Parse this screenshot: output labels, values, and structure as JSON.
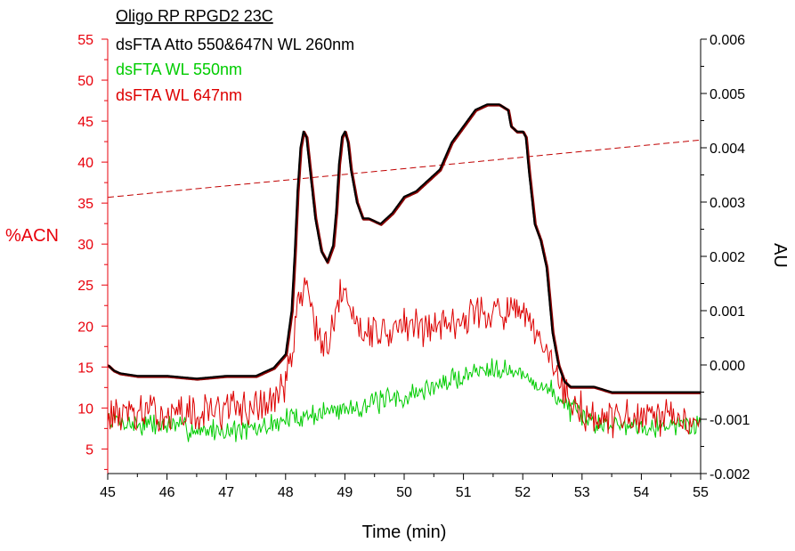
{
  "chart_data": {
    "type": "line",
    "title": "Oligo RP RPGD2 23C",
    "xlabel": "Time (min)",
    "ylabel_left": "%ACN",
    "ylabel_right": "AU",
    "xlim": [
      45,
      55
    ],
    "ylim_left": [
      2,
      55
    ],
    "ylim_right": [
      -0.002,
      0.006
    ],
    "x_ticks": [
      "45",
      "46",
      "47",
      "48",
      "49",
      "50",
      "51",
      "52",
      "53",
      "54",
      "55"
    ],
    "y_left_ticks": [
      "5",
      "10",
      "15",
      "20",
      "25",
      "30",
      "35",
      "40",
      "45",
      "50",
      "55"
    ],
    "y_right_ticks": [
      "-0.002",
      "-0.001",
      "0.000",
      "0.001",
      "0.002",
      "0.003",
      "0.004",
      "0.005",
      "0.006"
    ],
    "grid": false,
    "legend_position": "top-left",
    "colors": {
      "left_axis": "#e8000b",
      "gradient": "#c00000",
      "wl260": "#000000",
      "wl260_shadow": "#8b0000",
      "wl550": "#00cc00",
      "wl647": "#dd0000"
    },
    "series": [
      {
        "name": "dsFTA Atto 550&647N WL 260nm",
        "axis": "right",
        "x": [
          45.0,
          45.1,
          45.2,
          45.5,
          46.0,
          46.5,
          47.0,
          47.5,
          47.8,
          48.0,
          48.1,
          48.15,
          48.2,
          48.25,
          48.3,
          48.35,
          48.4,
          48.5,
          48.6,
          48.7,
          48.8,
          48.85,
          48.9,
          48.95,
          49.0,
          49.05,
          49.1,
          49.2,
          49.3,
          49.4,
          49.6,
          49.7,
          49.8,
          50.0,
          50.2,
          50.4,
          50.6,
          50.8,
          51.0,
          51.2,
          51.4,
          51.6,
          51.75,
          51.8,
          51.9,
          52.0,
          52.05,
          52.1,
          52.2,
          52.3,
          52.4,
          52.5,
          52.6,
          52.7,
          52.8,
          53.0,
          53.2,
          53.5,
          54.0,
          54.5,
          55.0
        ],
        "y": [
          0.0,
          -0.0001,
          -0.00015,
          -0.0002,
          -0.0002,
          -0.00025,
          -0.0002,
          -0.0002,
          -5e-05,
          0.0002,
          0.001,
          0.002,
          0.0032,
          0.004,
          0.0043,
          0.0042,
          0.0037,
          0.0027,
          0.0021,
          0.0019,
          0.0022,
          0.0028,
          0.0037,
          0.0042,
          0.0043,
          0.0041,
          0.0036,
          0.003,
          0.0027,
          0.0027,
          0.0026,
          0.0027,
          0.0028,
          0.0031,
          0.0032,
          0.0034,
          0.0036,
          0.0041,
          0.0044,
          0.0047,
          0.0048,
          0.0048,
          0.0047,
          0.0044,
          0.0043,
          0.0043,
          0.0042,
          0.0036,
          0.0026,
          0.0023,
          0.0018,
          0.0006,
          0.0,
          -0.0003,
          -0.0004,
          -0.0004,
          -0.0004,
          -0.0005,
          -0.0005,
          -0.0005,
          -0.0005
        ]
      },
      {
        "name": "dsFTA WL 550nm",
        "axis": "right",
        "x": [
          45.0,
          45.5,
          46.0,
          46.5,
          47.0,
          47.5,
          48.0,
          48.5,
          49.0,
          49.5,
          50.0,
          50.5,
          51.0,
          51.5,
          52.0,
          52.5,
          52.8,
          53.0,
          53.5,
          54.0,
          54.5,
          55.0
        ],
        "y": [
          -0.001,
          -0.0011,
          -0.0011,
          -0.0012,
          -0.0012,
          -0.0012,
          -0.001,
          -0.0009,
          -0.0008,
          -0.0007,
          -0.0006,
          -0.0004,
          -0.0002,
          0.0,
          -0.0002,
          -0.0005,
          -0.0008,
          -0.001,
          -0.0011,
          -0.0011,
          -0.0011,
          -0.0011
        ]
      },
      {
        "name": "dsFTA WL 647nm",
        "axis": "right",
        "x": [
          45.0,
          45.5,
          46.0,
          46.5,
          47.0,
          47.5,
          47.8,
          48.0,
          48.2,
          48.35,
          48.5,
          48.7,
          48.9,
          49.0,
          49.2,
          49.5,
          50.0,
          50.5,
          51.0,
          51.5,
          52.0,
          52.3,
          52.6,
          52.9,
          53.2,
          53.5,
          54.0,
          54.5,
          55.0
        ],
        "y": [
          -0.0009,
          -0.0009,
          -0.0009,
          -0.0009,
          -0.0008,
          -0.0008,
          -0.0006,
          -0.0004,
          0.001,
          0.0016,
          0.0007,
          0.0002,
          0.0012,
          0.0013,
          0.0008,
          0.0006,
          0.0007,
          0.0007,
          0.0009,
          0.001,
          0.0009,
          0.0004,
          -0.0003,
          -0.0008,
          -0.001,
          -0.001,
          -0.001,
          -0.001,
          -0.001
        ]
      },
      {
        "name": "gradient",
        "axis": "left",
        "x": [
          45,
          55
        ],
        "y": [
          35.7,
          42.7
        ]
      }
    ]
  }
}
